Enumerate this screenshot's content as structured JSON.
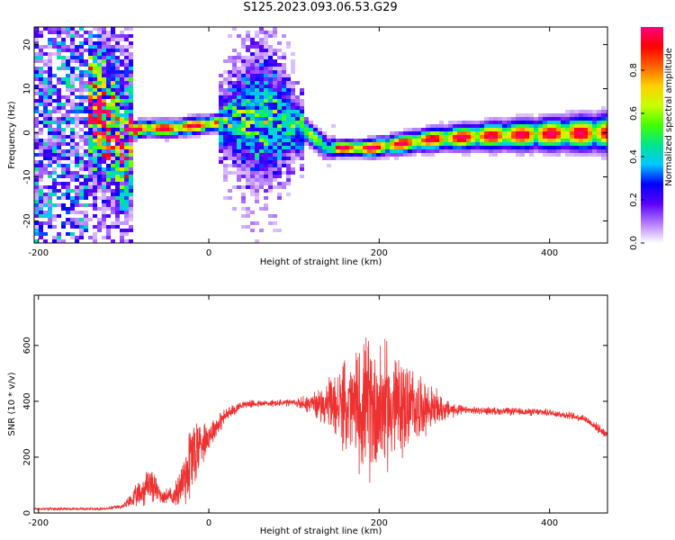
{
  "figure": {
    "title": "S125.2023.093.06.53.G29"
  },
  "chart_data": [
    {
      "type": "heatmap",
      "xlabel": "Height of straight line (km)",
      "ylabel": "Frequency (Hz)",
      "xlim": [
        -205,
        468
      ],
      "ylim": [
        -25,
        24
      ],
      "xticks": [
        -200,
        0,
        200,
        400
      ],
      "yticks": [
        -20,
        -10,
        0,
        10,
        20
      ],
      "colorbar": {
        "label": "Normalized spectral amplitude",
        "range": [
          0,
          1
        ],
        "ticks": [
          0.0,
          0.2,
          0.4,
          0.6,
          0.8
        ],
        "colors": [
          "#ffffff",
          "#b47bff",
          "#5b00ff",
          "#0000ff",
          "#00c8ff",
          "#00e68c",
          "#40ff00",
          "#c8ff00",
          "#ffd000",
          "#ff6000",
          "#ff0000",
          "#ff0080"
        ]
      },
      "ridge": [
        {
          "x": -140,
          "y": 6
        },
        {
          "x": -125,
          "y": 4
        },
        {
          "x": -110,
          "y": 1
        },
        {
          "x": -100,
          "y": -5
        },
        {
          "x": -92,
          "y": 0
        },
        {
          "x": -80,
          "y": 1
        },
        {
          "x": -40,
          "y": 1
        },
        {
          "x": 0,
          "y": 2
        },
        {
          "x": 40,
          "y": 3
        },
        {
          "x": 80,
          "y": 3
        },
        {
          "x": 110,
          "y": 1
        },
        {
          "x": 140,
          "y": -3.5
        },
        {
          "x": 190,
          "y": -3.5
        },
        {
          "x": 260,
          "y": -1.5
        },
        {
          "x": 320,
          "y": -0.8
        },
        {
          "x": 400,
          "y": -0.3
        },
        {
          "x": 468,
          "y": 0
        }
      ]
    },
    {
      "type": "line",
      "xlabel": "Height of straight line (km)",
      "ylabel": "SNR (10 * v/v)",
      "xlim": [
        -205,
        468
      ],
      "ylim": [
        0,
        780
      ],
      "xticks": [
        -200,
        0,
        200,
        400
      ],
      "yticks": [
        0,
        200,
        400,
        600
      ],
      "series": [
        {
          "color": "#ee3030",
          "envelope": [
            {
              "x": -205,
              "mean": 15,
              "amp": 5
            },
            {
              "x": -120,
              "mean": 15,
              "amp": 5
            },
            {
              "x": -100,
              "mean": 25,
              "amp": 10
            },
            {
              "x": -80,
              "mean": 70,
              "amp": 60
            },
            {
              "x": -70,
              "mean": 110,
              "amp": 80
            },
            {
              "x": -55,
              "mean": 60,
              "amp": 30
            },
            {
              "x": -40,
              "mean": 60,
              "amp": 40
            },
            {
              "x": -30,
              "mean": 120,
              "amp": 120
            },
            {
              "x": -20,
              "mean": 200,
              "amp": 200
            },
            {
              "x": -10,
              "mean": 250,
              "amp": 100
            },
            {
              "x": 0,
              "mean": 280,
              "amp": 60
            },
            {
              "x": 20,
              "mean": 350,
              "amp": 30
            },
            {
              "x": 40,
              "mean": 390,
              "amp": 15
            },
            {
              "x": 100,
              "mean": 395,
              "amp": 15
            },
            {
              "x": 130,
              "mean": 390,
              "amp": 60
            },
            {
              "x": 160,
              "mean": 380,
              "amp": 180
            },
            {
              "x": 190,
              "mean": 380,
              "amp": 300
            },
            {
              "x": 220,
              "mean": 380,
              "amp": 230
            },
            {
              "x": 250,
              "mean": 380,
              "amp": 120
            },
            {
              "x": 280,
              "mean": 370,
              "amp": 40
            },
            {
              "x": 300,
              "mean": 368,
              "amp": 15
            },
            {
              "x": 400,
              "mean": 360,
              "amp": 15
            },
            {
              "x": 440,
              "mean": 340,
              "amp": 15
            },
            {
              "x": 468,
              "mean": 280,
              "amp": 20
            }
          ]
        }
      ]
    }
  ]
}
